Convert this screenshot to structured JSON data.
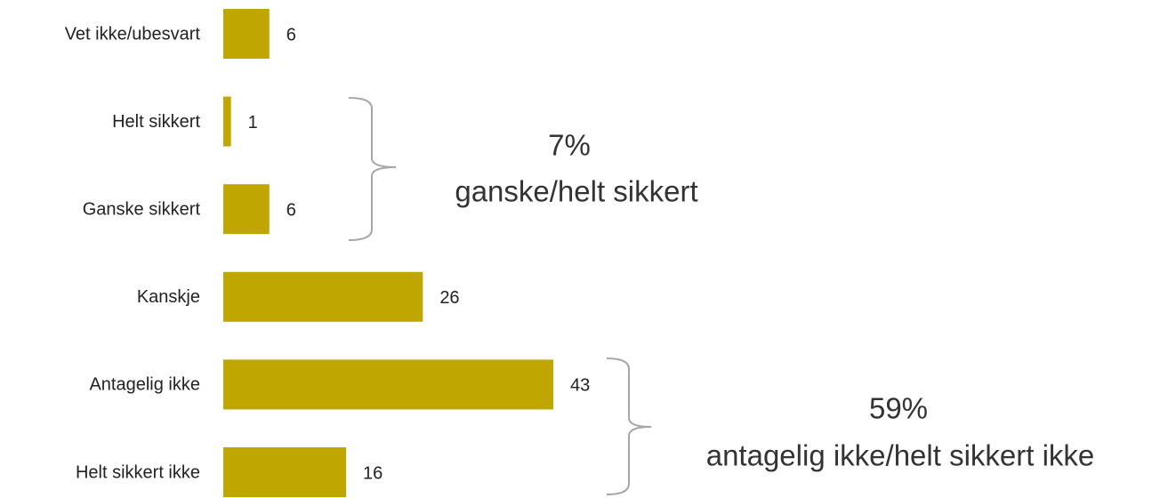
{
  "chart_data": {
    "type": "bar",
    "orientation": "horizontal",
    "categories": [
      "Vet ikke/ubesvart",
      "Helt sikkert",
      "Ganske sikkert",
      "Kanskje",
      "Antagelig ikke",
      "Helt sikkert ikke"
    ],
    "values": [
      6,
      1,
      6,
      26,
      43,
      16
    ],
    "color": "#bfa600",
    "annotations": [
      {
        "label": "7%",
        "text": "ganske/helt sikkert"
      },
      {
        "label": "59%",
        "text": "antagelig ikke/helt sikkert ikke"
      }
    ]
  }
}
